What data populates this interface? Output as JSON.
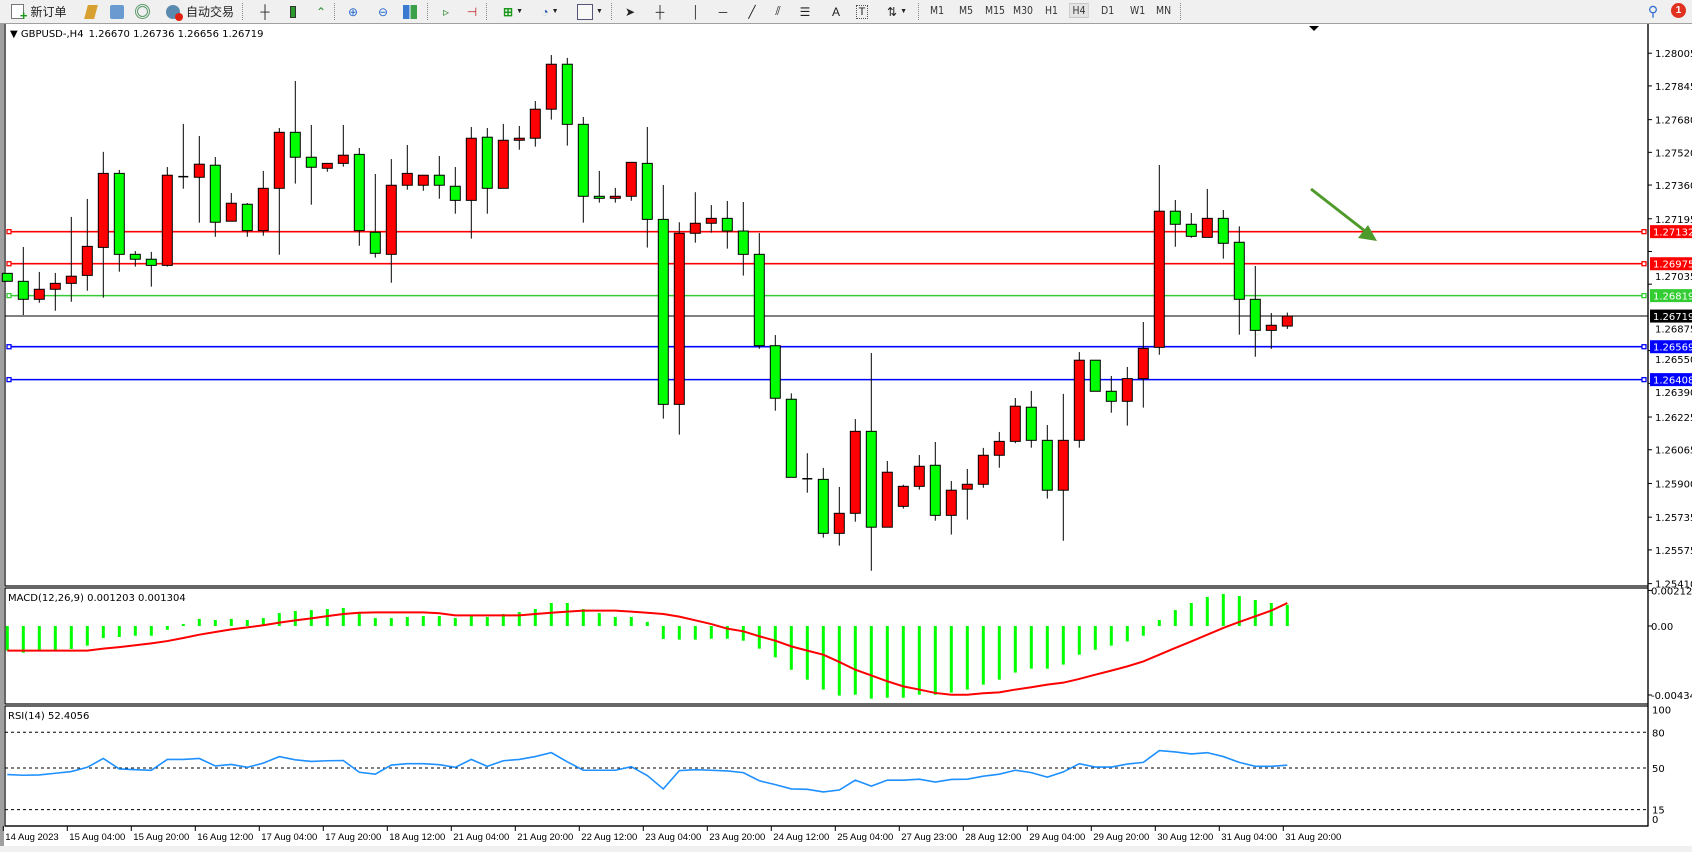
{
  "toolbar": {
    "new_order_label": "新订单",
    "auto_trading_label": "自动交易",
    "timeframes": [
      "M1",
      "M5",
      "M15",
      "M30",
      "H1",
      "H4",
      "D1",
      "W1",
      "MN"
    ],
    "active_timeframe": "H4",
    "notification_count": "1",
    "icons": [
      "new-order-icon",
      "market-watch-icon",
      "navigator-icon",
      "signals-icon",
      "auto-trading-icon",
      "bar-chart-icon",
      "candlestick-icon",
      "line-chart-icon",
      "zoom-in-icon",
      "zoom-out-icon",
      "tile-windows-icon",
      "auto-scroll-icon",
      "chart-shift-icon",
      "indicators-icon",
      "periods-icon",
      "templates-icon",
      "cursor-icon",
      "crosshair-icon",
      "vertical-line-icon",
      "horizontal-line-icon",
      "trendline-icon",
      "equidistant-channel-icon",
      "fibonacci-icon",
      "text-icon",
      "text-label-icon",
      "arrows-icon",
      "search-icon",
      "notification-icon"
    ]
  },
  "chart": {
    "symbol": "GBPUSD-,H4",
    "ohlc": "1.26670 1.26736 1.26656 1.26719",
    "bull_color": "#ff0000",
    "bear_color": "#00ff00",
    "price_ticks": [
      "1.28005",
      "1.27845",
      "1.27680",
      "1.27520",
      "1.27360",
      "1.27195",
      "1.27035",
      "1.26875",
      "1.26550",
      "1.26390",
      "1.26225",
      "1.26065",
      "1.25900",
      "1.25735",
      "1.25575",
      "1.25410"
    ],
    "levels": [
      {
        "price": "1.27132",
        "color": "#ff0000"
      },
      {
        "price": "1.26975",
        "color": "#ff0000"
      },
      {
        "price": "1.26819",
        "color": "#33cc33"
      },
      {
        "price": "1.26569",
        "color": "#0000ff"
      },
      {
        "price": "1.26408",
        "color": "#0000ff"
      }
    ],
    "current_price": {
      "price": "1.26719",
      "color": "#000000"
    },
    "arrow_color": "#4e9a2a",
    "time_labels": [
      {
        "bar": 0,
        "label": "14 Aug 2023"
      },
      {
        "bar": 4,
        "label": "15 Aug 04:00"
      },
      {
        "bar": 8,
        "label": "15 Aug 20:00"
      },
      {
        "bar": 12,
        "label": "16 Aug 12:00"
      },
      {
        "bar": 16,
        "label": "17 Aug 04:00"
      },
      {
        "bar": 20,
        "label": "17 Aug 20:00"
      },
      {
        "bar": 24,
        "label": "18 Aug 12:00"
      },
      {
        "bar": 28,
        "label": "21 Aug 04:00"
      },
      {
        "bar": 32,
        "label": "21 Aug 20:00"
      },
      {
        "bar": 36,
        "label": "22 Aug 12:00"
      },
      {
        "bar": 40,
        "label": "23 Aug 04:00"
      },
      {
        "bar": 44,
        "label": "23 Aug 20:00"
      },
      {
        "bar": 48,
        "label": "24 Aug 12:00"
      },
      {
        "bar": 52,
        "label": "25 Aug 04:00"
      },
      {
        "bar": 56,
        "label": "27 Aug 23:00"
      },
      {
        "bar": 60,
        "label": "28 Aug 12:00"
      },
      {
        "bar": 64,
        "label": "29 Aug 04:00"
      },
      {
        "bar": 68,
        "label": "29 Aug 20:00"
      },
      {
        "bar": 72,
        "label": "30 Aug 12:00"
      },
      {
        "bar": 76,
        "label": "31 Aug 04:00"
      },
      {
        "bar": 80,
        "label": "31 Aug 20:00"
      }
    ]
  },
  "chart_data": [
    {
      "type": "candlestick",
      "title": "GBPUSD-,H4",
      "fields": [
        "open",
        "high",
        "low",
        "close"
      ],
      "ylim": [
        1.2541,
        1.28005
      ],
      "candles": [
        [
          1.26928,
          1.26928,
          1.26889,
          1.26889
        ],
        [
          1.26889,
          1.27057,
          1.26724,
          1.26801
        ],
        [
          1.26801,
          1.26935,
          1.26784,
          1.2685
        ],
        [
          1.2685,
          1.2693,
          1.26745,
          1.26879
        ],
        [
          1.26879,
          1.27204,
          1.26789,
          1.26914
        ],
        [
          1.26918,
          1.27292,
          1.26843,
          1.2706
        ],
        [
          1.27055,
          1.27522,
          1.26809,
          1.27417
        ],
        [
          1.27417,
          1.27434,
          1.26936,
          1.27021
        ],
        [
          1.27021,
          1.27037,
          1.26961,
          1.26997
        ],
        [
          1.26997,
          1.27033,
          1.26863,
          1.26967
        ],
        [
          1.26967,
          1.27448,
          1.26961,
          1.27408
        ],
        [
          1.27401,
          1.27659,
          1.27342,
          1.27401
        ],
        [
          1.27398,
          1.276,
          1.27176,
          1.27462
        ],
        [
          1.27457,
          1.27497,
          1.27107,
          1.27178
        ],
        [
          1.27183,
          1.27321,
          1.27183,
          1.27271
        ],
        [
          1.27266,
          1.27272,
          1.27107,
          1.27137
        ],
        [
          1.27137,
          1.27429,
          1.27112,
          1.27344
        ],
        [
          1.27344,
          1.27639,
          1.27019,
          1.27618
        ],
        [
          1.27618,
          1.27869,
          1.27367,
          1.27496
        ],
        [
          1.27496,
          1.27654,
          1.27264,
          1.27447
        ],
        [
          1.27442,
          1.27466,
          1.27425,
          1.27466
        ],
        [
          1.27466,
          1.27654,
          1.2745,
          1.27506
        ],
        [
          1.2751,
          1.27541,
          1.27063,
          1.27137
        ],
        [
          1.27129,
          1.27414,
          1.27005,
          1.27026
        ],
        [
          1.27021,
          1.27487,
          1.26882,
          1.27359
        ],
        [
          1.27359,
          1.27556,
          1.27337,
          1.27417
        ],
        [
          1.27359,
          1.27408,
          1.27332,
          1.27408
        ],
        [
          1.27408,
          1.27502,
          1.27293,
          1.27359
        ],
        [
          1.27354,
          1.27448,
          1.2722,
          1.27285
        ],
        [
          1.27285,
          1.27644,
          1.27098,
          1.27589
        ],
        [
          1.27594,
          1.27639,
          1.2722,
          1.27344
        ],
        [
          1.27344,
          1.27659,
          1.27344,
          1.27579
        ],
        [
          1.27579,
          1.27649,
          1.27533,
          1.27589
        ],
        [
          1.27589,
          1.27771,
          1.27548,
          1.27731
        ],
        [
          1.27731,
          1.27996,
          1.2768,
          1.27951
        ],
        [
          1.27951,
          1.27982,
          1.27553,
          1.27657
        ],
        [
          1.27657,
          1.27693,
          1.27176,
          1.27305
        ],
        [
          1.27305,
          1.27429,
          1.27274,
          1.27295
        ],
        [
          1.27295,
          1.27346,
          1.27274,
          1.27305
        ],
        [
          1.27305,
          1.27471,
          1.27283,
          1.27471
        ],
        [
          1.27466,
          1.27644,
          1.27054,
          1.27192
        ],
        [
          1.27192,
          1.2736,
          1.26217,
          1.26287
        ],
        [
          1.26287,
          1.27178,
          1.26139,
          1.27124
        ],
        [
          1.27124,
          1.27325,
          1.27078,
          1.27173
        ],
        [
          1.27173,
          1.27262,
          1.27127,
          1.27197
        ],
        [
          1.27197,
          1.27282,
          1.27049,
          1.27135
        ],
        [
          1.27135,
          1.27277,
          1.26917,
          1.27021
        ],
        [
          1.27021,
          1.27125,
          1.26559,
          1.26574
        ],
        [
          1.26574,
          1.26626,
          1.26256,
          1.26317
        ],
        [
          1.26312,
          1.26341,
          1.2593,
          1.2593
        ],
        [
          1.25923,
          1.26048,
          1.25855,
          1.25923
        ],
        [
          1.2592,
          1.25976,
          1.25635,
          1.25656
        ],
        [
          1.25656,
          1.25883,
          1.25596,
          1.25754
        ],
        [
          1.25754,
          1.26215,
          1.25713,
          1.26155
        ],
        [
          1.26155,
          1.26538,
          1.25473,
          1.25686
        ],
        [
          1.25686,
          1.2601,
          1.25686,
          1.25955
        ],
        [
          1.25788,
          1.25894,
          1.25777,
          1.25886
        ],
        [
          1.25886,
          1.26039,
          1.2587,
          1.25984
        ],
        [
          1.25989,
          1.26103,
          1.25718,
          1.25744
        ],
        [
          1.25744,
          1.25912,
          1.2565,
          1.25867
        ],
        [
          1.25872,
          1.25971,
          1.25723,
          1.25896
        ],
        [
          1.25896,
          1.26074,
          1.25879,
          1.26038
        ],
        [
          1.26038,
          1.26152,
          1.25977,
          1.26106
        ],
        [
          1.26106,
          1.26318,
          1.26097,
          1.26278
        ],
        [
          1.26273,
          1.26353,
          1.26075,
          1.26111
        ],
        [
          1.26111,
          1.26186,
          1.25826,
          1.25867
        ],
        [
          1.25867,
          1.26338,
          1.2562,
          1.26111
        ],
        [
          1.26111,
          1.26543,
          1.26075,
          1.26503
        ],
        [
          1.26503,
          1.26503,
          1.26351,
          1.26351
        ],
        [
          1.26351,
          1.26426,
          1.26246,
          1.26302
        ],
        [
          1.26302,
          1.2647,
          1.26183,
          1.26413
        ],
        [
          1.26413,
          1.2669,
          1.26271,
          1.26561
        ],
        [
          1.26566,
          1.27458,
          1.2653,
          1.27232
        ],
        [
          1.27232,
          1.27287,
          1.27058,
          1.27168
        ],
        [
          1.27168,
          1.27223,
          1.27102,
          1.27109
        ],
        [
          1.27104,
          1.27341,
          1.27104,
          1.27197
        ],
        [
          1.27197,
          1.27238,
          1.27,
          1.27075
        ],
        [
          1.2708,
          1.27158,
          1.26628,
          1.26801
        ],
        [
          1.26801,
          1.26964,
          1.2652,
          1.26649
        ],
        [
          1.26649,
          1.26734,
          1.26559,
          1.26674
        ],
        [
          1.2667,
          1.26736,
          1.26656,
          1.26719
        ]
      ]
    },
    {
      "type": "bar+line",
      "title": "MACD(12,26,9) 0.001203 0.001304",
      "ylim": [
        -0.004348,
        0.002121
      ],
      "ticks": [
        "0.002121",
        "0.00",
        "-0.004348"
      ],
      "main_color": "#00ff00",
      "signal_color": "#ff0000",
      "main": [
        -0.00139,
        -0.00151,
        -0.00136,
        -0.00136,
        -0.0013,
        -0.00111,
        -0.00068,
        -0.00062,
        -0.00055,
        -0.00055,
        -0.00021,
        0.00011,
        0.0004,
        0.00034,
        0.0004,
        0.00034,
        0.00045,
        0.00073,
        0.00085,
        0.0009,
        0.00096,
        0.00102,
        0.0007,
        0.00045,
        0.00045,
        0.00051,
        0.00056,
        0.00056,
        0.00045,
        0.00056,
        0.00051,
        0.00068,
        0.00079,
        0.00096,
        0.0013,
        0.0013,
        0.00096,
        0.00073,
        0.00051,
        0.00051,
        0.00023,
        -0.00073,
        -0.00077,
        -0.00077,
        -0.00072,
        -0.00072,
        -0.00083,
        -0.00128,
        -0.00177,
        -0.00247,
        -0.00303,
        -0.00359,
        -0.00393,
        -0.00388,
        -0.0041,
        -0.00405,
        -0.00405,
        -0.00388,
        -0.00388,
        -0.00376,
        -0.00359,
        -0.00331,
        -0.00303,
        -0.00263,
        -0.00241,
        -0.00241,
        -0.00218,
        -0.00162,
        -0.00134,
        -0.00111,
        -0.00087,
        -0.00055,
        0.00034,
        0.0009,
        0.0013,
        0.00164,
        0.00181,
        0.00169,
        0.00147,
        0.0013,
        0.0012
      ],
      "signal": [
        -0.00139,
        -0.00139,
        -0.00139,
        -0.00139,
        -0.00139,
        -0.00139,
        -0.00128,
        -0.00119,
        -0.00109,
        -0.00098,
        -0.00085,
        -0.00068,
        -0.00049,
        -0.00034,
        -0.00019,
        -8e-05,
        4e-05,
        0.00019,
        0.00032,
        0.00043,
        0.00056,
        0.00068,
        0.00075,
        0.00077,
        0.00077,
        0.00077,
        0.00077,
        0.00072,
        0.0006,
        0.0006,
        0.0006,
        0.0006,
        0.0006,
        0.00068,
        0.00075,
        0.00081,
        0.00087,
        0.00087,
        0.00087,
        0.00081,
        0.00075,
        0.00068,
        0.00053,
        0.00032,
        0.00011,
        -0.00015,
        -0.0003,
        -0.00058,
        -0.00083,
        -0.00115,
        -0.00139,
        -0.00162,
        -0.00203,
        -0.00247,
        -0.00279,
        -0.00312,
        -0.00341,
        -0.00359,
        -0.00378,
        -0.00388,
        -0.00388,
        -0.0038,
        -0.00375,
        -0.00359,
        -0.00346,
        -0.00331,
        -0.0032,
        -0.00299,
        -0.00275,
        -0.00252,
        -0.00228,
        -0.002,
        -0.00162,
        -0.00124,
        -0.00087,
        -0.00049,
        -0.00011,
        0.00023,
        0.00055,
        0.00087,
        0.0013
      ]
    },
    {
      "type": "line",
      "title": "RSI(14) 52.4056",
      "ylim": [
        0,
        100
      ],
      "ticks": [
        "100",
        "80",
        "50",
        "15",
        "0"
      ],
      "levels": [
        80,
        50,
        15
      ],
      "color": "#1e90ff",
      "values": [
        44.5,
        43.9,
        44.2,
        45.6,
        47.0,
        50.6,
        58.0,
        49.2,
        48.6,
        48.1,
        57.2,
        57.2,
        58.0,
        51.7,
        53.0,
        50.6,
        54.1,
        59.6,
        56.9,
        55.5,
        56.1,
        56.3,
        46.4,
        44.8,
        52.5,
        53.6,
        53.6,
        52.8,
        50.6,
        57.2,
        51.4,
        56.1,
        57.2,
        59.6,
        62.9,
        55.2,
        48.1,
        48.1,
        48.1,
        51.1,
        43.7,
        32.4,
        47.8,
        48.6,
        48.1,
        47.5,
        46.1,
        39.3,
        36.0,
        32.4,
        32.1,
        29.9,
        31.5,
        39.8,
        34.8,
        39.8,
        39.8,
        40.6,
        38.2,
        40.4,
        40.6,
        43.1,
        44.8,
        48.1,
        46.1,
        42.3,
        46.7,
        53.6,
        50.8,
        50.8,
        53.3,
        54.7,
        64.6,
        63.5,
        61.8,
        62.9,
        59.6,
        54.7,
        51.4,
        51.4,
        52.4
      ]
    }
  ]
}
